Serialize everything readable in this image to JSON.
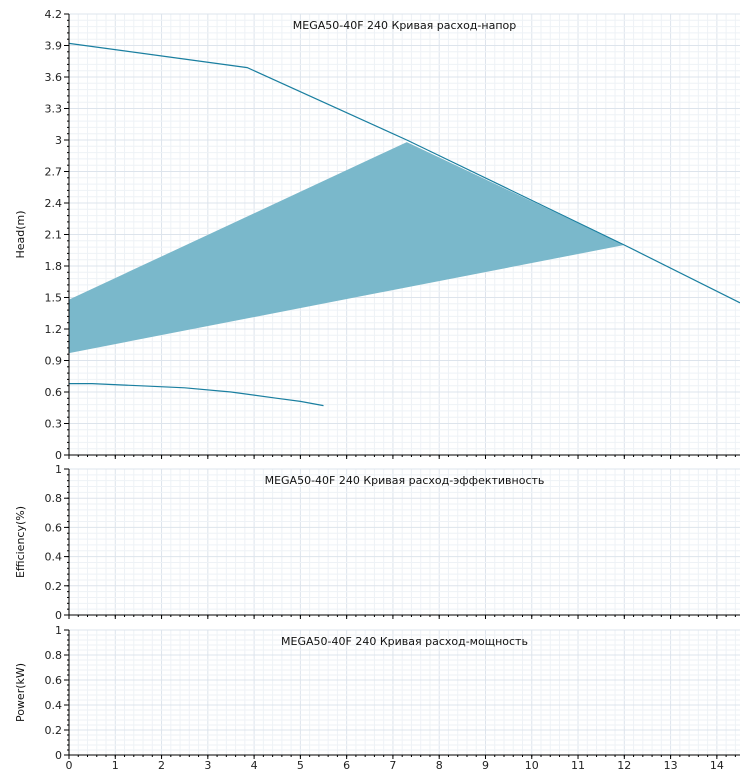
{
  "colors": {
    "head_curve": "#1a7fa0",
    "band_fill": "#7ab8cb",
    "grid_minor": "#eef2f6",
    "grid_major": "#dde4ec",
    "axis": "#000000"
  },
  "chart_data": [
    {
      "type": "line",
      "title": "MEGA50-40F 240 Кривая расход-напор",
      "xlabel": "",
      "ylabel": "Head(m)",
      "xlim": [
        0,
        14.5
      ],
      "ylim": [
        0,
        4.2
      ],
      "xticks": [
        "0",
        "1",
        "2",
        "3",
        "4",
        "5",
        "6",
        "7",
        "8",
        "9",
        "10",
        "11",
        "12",
        "13",
        "14"
      ],
      "yticks": [
        "0",
        "0.3",
        "0.6",
        "0.9",
        "1.2",
        "1.5",
        "1.8",
        "2.1",
        "2.4",
        "2.7",
        "3",
        "3.3",
        "3.6",
        "3.9",
        "4.2"
      ],
      "grid": true,
      "series": [
        {
          "kind": "line",
          "x": [
            0,
            3.85,
            7.3,
            12.0,
            14.5
          ],
          "y": [
            3.92,
            3.69,
            3.0,
            2.0,
            1.45
          ]
        },
        {
          "kind": "line",
          "x": [
            0,
            0.5,
            1.5,
            2.5,
            3.5,
            4.5,
            5.0,
            5.5
          ],
          "y": [
            0.68,
            0.68,
            0.66,
            0.64,
            0.6,
            0.54,
            0.51,
            0.47
          ]
        },
        {
          "kind": "area",
          "x": [
            0,
            7.3,
            12.0,
            0
          ],
          "y": [
            1.48,
            2.98,
            2.0,
            0.97
          ]
        }
      ]
    },
    {
      "type": "line",
      "title": "MEGA50-40F 240 Кривая расход-эффективность",
      "xlabel": "",
      "ylabel": "Efficiency(%)",
      "xlim": [
        0,
        14.5
      ],
      "ylim": [
        0,
        1
      ],
      "yticks": [
        "0",
        "0.2",
        "0.4",
        "0.6",
        "0.8",
        "1"
      ],
      "grid": true,
      "series": []
    },
    {
      "type": "line",
      "title": "MEGA50-40F 240 Кривая расход-мощность",
      "xlabel": "",
      "ylabel": "Power(kW)",
      "xlim": [
        0,
        14.5
      ],
      "ylim": [
        0,
        1
      ],
      "xticks": [
        "0",
        "1",
        "2",
        "3",
        "4",
        "5",
        "6",
        "7",
        "8",
        "9",
        "10",
        "11",
        "12",
        "13",
        "14"
      ],
      "yticks": [
        "0",
        "0.2",
        "0.4",
        "0.6",
        "0.8",
        "1"
      ],
      "grid": true,
      "series": []
    }
  ]
}
